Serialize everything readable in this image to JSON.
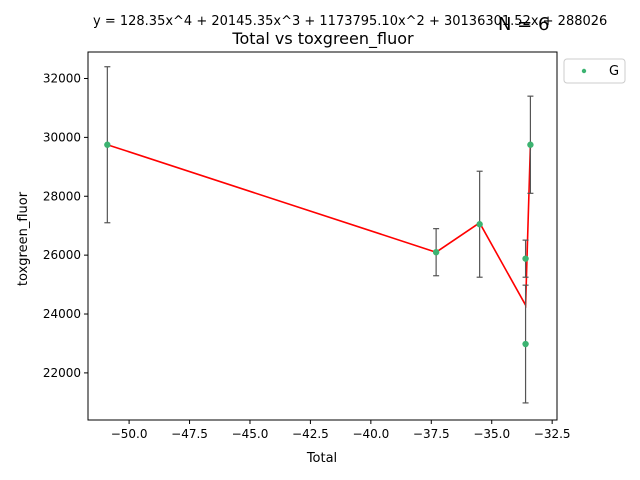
{
  "chart_data": {
    "type": "scatter",
    "title": "Total vs toxgreen_fluor",
    "equation": "y = 128.35x^4 + 20145.35x^3 + 1173795.10x^2 + 30136301.52x + 288026",
    "n_label": "N = 6",
    "xlabel": "Total",
    "ylabel": "toxgreen_fluor",
    "xlim": [
      -51.7,
      -32.3
    ],
    "ylim": [
      20400,
      32900
    ],
    "xticks": [
      -50.0,
      -47.5,
      -45.0,
      -42.5,
      -40.0,
      -37.5,
      -35.0,
      -32.5
    ],
    "xtick_labels": [
      "−50.0",
      "−47.5",
      "−45.0",
      "−42.5",
      "−40.0",
      "−37.5",
      "−35.0",
      "−32.5"
    ],
    "yticks": [
      22000,
      24000,
      26000,
      28000,
      30000,
      32000
    ],
    "ytick_labels": [
      "22000",
      "24000",
      "26000",
      "28000",
      "30000",
      "32000"
    ],
    "legend": {
      "position": "upper-right-outside",
      "entries": [
        {
          "label": "G",
          "color": "#3cb371"
        }
      ]
    },
    "points": [
      {
        "x": -50.9,
        "y": 29750,
        "err": 2650
      },
      {
        "x": -37.3,
        "y": 26100,
        "err": 800
      },
      {
        "x": -35.5,
        "y": 27050,
        "err": 1800
      },
      {
        "x": -33.6,
        "y": 22980,
        "err": 2000
      },
      {
        "x": -33.6,
        "y": 25880,
        "err": 630
      },
      {
        "x": -33.4,
        "y": 29750,
        "err": 1650
      }
    ],
    "fit_line": {
      "color": "#ff0000",
      "points": [
        {
          "x": -50.9,
          "y": 29750
        },
        {
          "x": -37.3,
          "y": 26100
        },
        {
          "x": -35.5,
          "y": 27100
        },
        {
          "x": -33.6,
          "y": 24300
        },
        {
          "x": -33.4,
          "y": 29750
        }
      ]
    },
    "colors": {
      "point": "#3cb371",
      "errorbar": "#555555",
      "fit": "#ff0000"
    }
  }
}
